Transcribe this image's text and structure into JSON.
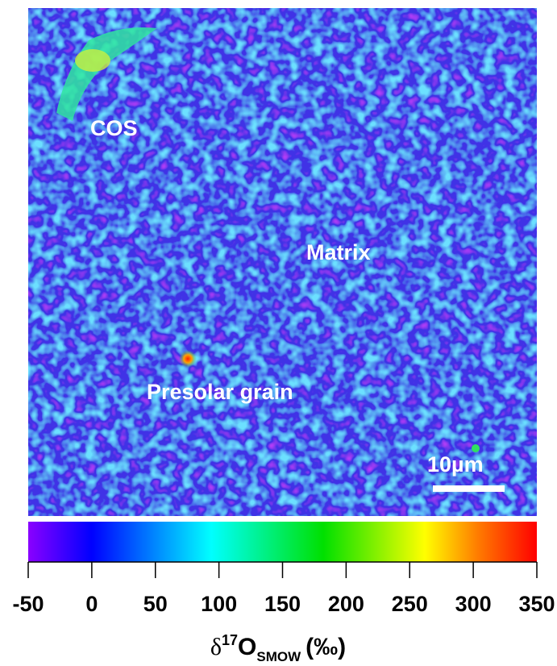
{
  "image": {
    "labels": [
      "COS",
      "Matrix",
      "Presolar grain"
    ],
    "scale_bar": "10µm"
  },
  "colorbar": {
    "lim": [
      -50,
      350
    ],
    "ticks": [
      -50,
      0,
      50,
      100,
      150,
      200,
      250,
      300,
      350
    ],
    "label": {
      "delta": "δ",
      "mass": "17",
      "element": "O",
      "standard": "SMOW",
      "unit": "(‰)"
    }
  }
}
